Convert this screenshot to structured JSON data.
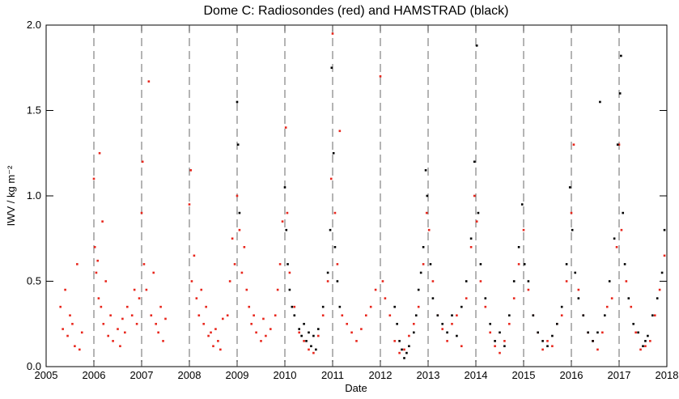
{
  "chart_data": {
    "type": "scatter",
    "title": "Dome C: Radiosondes (red) and HAMSTRAD (black)",
    "xlabel": "Date",
    "ylabel": "IWV / kg m⁻²",
    "xlim": [
      2005,
      2018
    ],
    "xticks": [
      2005,
      2006,
      2007,
      2008,
      2009,
      2010,
      2011,
      2012,
      2013,
      2014,
      2015,
      2016,
      2017,
      2018
    ],
    "ylim": [
      0,
      2.0
    ],
    "yticks": [
      {
        "value": 0,
        "label": "0.0"
      },
      0.5,
      {
        "value": 1,
        "label": "1.0"
      },
      1.5,
      {
        "value": 2,
        "label": "2.0"
      }
    ],
    "grid": true,
    "series": [
      {
        "color": "#e8261c",
        "x": [
          2005.3,
          2005.35,
          2005.4,
          2005.45,
          2005.5,
          2005.55,
          2005.6,
          2005.65,
          2005.7,
          2005.75,
          2006.0,
          2006.02,
          2006.05,
          2006.08,
          2006.1,
          2006.12,
          2006.15,
          2006.18,
          2006.2,
          2006.25,
          2006.3,
          2006.35,
          2006.4,
          2006.5,
          2006.55,
          2006.6,
          2006.65,
          2006.7,
          2006.8,
          2006.85,
          2006.9,
          2006.95,
          2007.0,
          2007.02,
          2007.05,
          2007.1,
          2007.15,
          2007.2,
          2007.25,
          2007.3,
          2007.35,
          2007.4,
          2007.45,
          2007.5,
          2008.0,
          2008.03,
          2008.05,
          2008.1,
          2008.15,
          2008.2,
          2008.25,
          2008.3,
          2008.35,
          2008.4,
          2008.45,
          2008.5,
          2008.55,
          2008.6,
          2008.65,
          2008.7,
          2008.8,
          2008.85,
          2008.9,
          2008.95,
          2009.0,
          2009.05,
          2009.1,
          2009.15,
          2009.2,
          2009.25,
          2009.3,
          2009.35,
          2009.4,
          2009.5,
          2009.55,
          2009.6,
          2009.7,
          2009.8,
          2009.85,
          2009.9,
          2009.95,
          2010.02,
          2010.05,
          2010.1,
          2010.2,
          2010.3,
          2010.4,
          2010.5,
          2010.6,
          2010.7,
          2010.8,
          2010.9,
          2010.97,
          2011.0,
          2011.05,
          2011.1,
          2011.15,
          2011.2,
          2011.3,
          2011.4,
          2011.5,
          2011.6,
          2011.7,
          2011.8,
          2011.9,
          2012.0,
          2012.05,
          2012.1,
          2012.2,
          2012.3,
          2012.4,
          2012.5,
          2012.6,
          2012.7,
          2012.8,
          2012.9,
          2012.97,
          2013.02,
          2013.1,
          2013.2,
          2013.3,
          2013.4,
          2013.5,
          2013.6,
          2013.7,
          2013.8,
          2013.9,
          2013.97,
          2014.02,
          2014.1,
          2014.2,
          2014.3,
          2014.4,
          2014.5,
          2014.6,
          2014.7,
          2014.8,
          2014.9,
          2015.0,
          2015.1,
          2015.2,
          2015.3,
          2015.4,
          2015.5,
          2015.6,
          2015.7,
          2015.8,
          2015.9,
          2016.0,
          2016.05,
          2016.15,
          2016.25,
          2016.35,
          2016.45,
          2016.55,
          2016.65,
          2016.75,
          2016.85,
          2016.95,
          2017.0,
          2017.05,
          2017.15,
          2017.25,
          2017.35,
          2017.45,
          2017.55,
          2017.65,
          2017.75,
          2017.85,
          2017.95
        ],
        "values": [
          0.35,
          0.22,
          0.45,
          0.18,
          0.3,
          0.25,
          0.12,
          0.6,
          0.1,
          0.2,
          1.1,
          0.7,
          0.55,
          0.62,
          0.4,
          1.25,
          0.35,
          0.85,
          0.25,
          0.5,
          0.18,
          0.3,
          0.15,
          0.22,
          0.12,
          0.28,
          0.2,
          0.35,
          0.3,
          0.45,
          0.25,
          0.4,
          0.9,
          1.2,
          0.6,
          0.45,
          1.67,
          0.3,
          0.55,
          0.25,
          0.2,
          0.35,
          0.15,
          0.28,
          0.95,
          1.15,
          0.5,
          0.65,
          0.4,
          0.3,
          0.45,
          0.25,
          0.35,
          0.18,
          0.2,
          0.12,
          0.22,
          0.15,
          0.1,
          0.28,
          0.3,
          0.5,
          0.75,
          0.6,
          1.0,
          0.8,
          0.55,
          0.7,
          0.45,
          0.35,
          0.25,
          0.3,
          0.2,
          0.15,
          0.28,
          0.18,
          0.22,
          0.3,
          0.45,
          0.6,
          0.85,
          1.4,
          0.9,
          0.55,
          0.35,
          0.2,
          0.15,
          0.1,
          0.08,
          0.18,
          0.3,
          0.5,
          1.1,
          1.95,
          0.9,
          0.6,
          1.38,
          0.3,
          0.25,
          0.2,
          0.15,
          0.22,
          0.3,
          0.35,
          0.45,
          1.7,
          0.5,
          0.4,
          0.3,
          0.15,
          0.08,
          0.1,
          0.18,
          0.25,
          0.35,
          0.6,
          0.9,
          0.8,
          0.5,
          0.3,
          0.22,
          0.15,
          0.25,
          0.3,
          0.12,
          0.4,
          0.7,
          1.0,
          0.85,
          0.5,
          0.35,
          0.2,
          0.12,
          0.08,
          0.15,
          0.25,
          0.4,
          0.6,
          0.8,
          0.45,
          0.3,
          0.2,
          0.1,
          0.15,
          0.12,
          0.25,
          0.3,
          0.5,
          0.9,
          1.3,
          0.45,
          0.3,
          0.2,
          0.15,
          0.1,
          0.2,
          0.35,
          0.4,
          0.7,
          1.3,
          0.8,
          0.5,
          0.35,
          0.2,
          0.1,
          0.12,
          0.15,
          0.3,
          0.45,
          0.65
        ]
      },
      {
        "color": "#000000",
        "x": [
          2009.0,
          2009.02,
          2009.05,
          2010.0,
          2010.03,
          2010.06,
          2010.1,
          2010.15,
          2010.2,
          2010.3,
          2010.35,
          2010.4,
          2010.45,
          2010.5,
          2010.55,
          2010.6,
          2010.65,
          2010.7,
          2010.8,
          2010.9,
          2010.95,
          2010.98,
          2011.02,
          2011.05,
          2011.1,
          2011.15,
          2012.3,
          2012.35,
          2012.4,
          2012.45,
          2012.5,
          2012.55,
          2012.6,
          2012.7,
          2012.75,
          2012.8,
          2012.85,
          2012.9,
          2012.95,
          2012.98,
          2013.05,
          2013.1,
          2013.2,
          2013.3,
          2013.4,
          2013.5,
          2013.6,
          2013.7,
          2013.8,
          2013.9,
          2013.97,
          2014.02,
          2014.05,
          2014.1,
          2014.2,
          2014.3,
          2014.4,
          2014.5,
          2014.6,
          2014.7,
          2014.8,
          2014.9,
          2014.97,
          2015.02,
          2015.1,
          2015.2,
          2015.3,
          2015.4,
          2015.5,
          2015.6,
          2015.7,
          2015.8,
          2015.9,
          2015.97,
          2016.02,
          2016.08,
          2016.15,
          2016.25,
          2016.35,
          2016.45,
          2016.55,
          2016.6,
          2016.7,
          2016.8,
          2016.9,
          2016.97,
          2017.02,
          2017.04,
          2017.08,
          2017.12,
          2017.2,
          2017.3,
          2017.4,
          2017.5,
          2017.55,
          2017.6,
          2017.7,
          2017.8,
          2017.9,
          2017.95
        ],
        "values": [
          1.55,
          1.3,
          0.9,
          1.05,
          0.8,
          0.6,
          0.45,
          0.35,
          0.3,
          0.22,
          0.18,
          0.25,
          0.15,
          0.2,
          0.12,
          0.18,
          0.1,
          0.22,
          0.35,
          0.55,
          0.8,
          1.75,
          1.25,
          0.7,
          0.5,
          0.35,
          0.35,
          0.25,
          0.15,
          0.1,
          0.05,
          0.08,
          0.12,
          0.2,
          0.3,
          0.45,
          0.55,
          0.7,
          1.15,
          1.0,
          0.6,
          0.4,
          0.3,
          0.25,
          0.2,
          0.3,
          0.18,
          0.35,
          0.5,
          0.75,
          1.2,
          1.88,
          0.9,
          0.6,
          0.4,
          0.25,
          0.15,
          0.2,
          0.12,
          0.3,
          0.5,
          0.7,
          0.95,
          0.6,
          0.5,
          0.3,
          0.2,
          0.15,
          0.12,
          0.18,
          0.25,
          0.35,
          0.6,
          1.05,
          0.8,
          0.55,
          0.4,
          0.3,
          0.2,
          0.15,
          0.2,
          1.55,
          0.3,
          0.5,
          0.75,
          1.3,
          1.6,
          1.82,
          0.9,
          0.6,
          0.4,
          0.25,
          0.2,
          0.12,
          0.15,
          0.18,
          0.3,
          0.4,
          0.55,
          0.8
        ]
      }
    ]
  }
}
